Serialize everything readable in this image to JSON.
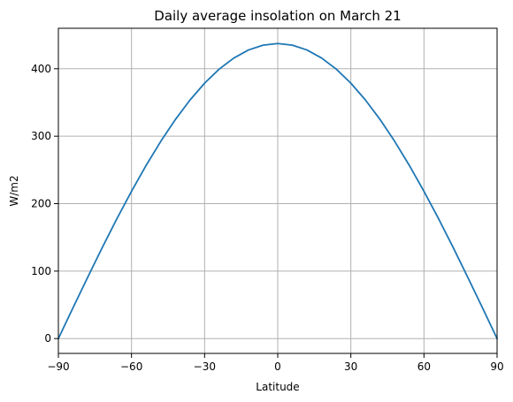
{
  "chart_data": {
    "type": "line",
    "title": "Daily average insolation on March 21",
    "xlabel": "Latitude",
    "ylabel": "W/m2",
    "xlim": [
      -90,
      90
    ],
    "ylim": [
      -22,
      460
    ],
    "grid": true,
    "xticks": [
      -90,
      -60,
      -30,
      0,
      30,
      60,
      90
    ],
    "yticks": [
      0,
      100,
      200,
      300,
      400
    ],
    "line_color": "#1f77b4",
    "series": [
      {
        "x": [
          -90,
          -84,
          -78,
          -72,
          -66,
          -60,
          -54,
          -48,
          -42,
          -36,
          -30,
          -24,
          -18,
          -12,
          -6,
          0,
          6,
          12,
          18,
          24,
          30,
          36,
          42,
          48,
          54,
          60,
          66,
          72,
          78,
          84,
          90
        ],
        "y": [
          0,
          45.6,
          90.7,
          134.9,
          177.6,
          218.3,
          256.7,
          292.3,
          324.7,
          353.6,
          378.6,
          399.5,
          415.9,
          427.8,
          435.0,
          437.4,
          435.0,
          427.8,
          415.9,
          399.5,
          378.6,
          353.6,
          324.7,
          292.3,
          256.7,
          218.3,
          177.6,
          134.9,
          90.7,
          45.6,
          0
        ]
      }
    ]
  }
}
